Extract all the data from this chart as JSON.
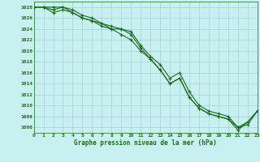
{
  "title": "Graphe pression niveau de la mer (hPa)",
  "bg_color": "#c8f0f0",
  "grid_color": "#a0d0d0",
  "line_color": "#1a6b1a",
  "marker_color": "#1a6b1a",
  "xlim": [
    0,
    23
  ],
  "ylim": [
    1005,
    1029
  ],
  "xtick_labels": [
    "0",
    "1",
    "2",
    "3",
    "4",
    "5",
    "6",
    "7",
    "8",
    "9",
    "10",
    "11",
    "12",
    "13",
    "14",
    "15",
    "16",
    "17",
    "18",
    "19",
    "20",
    "21",
    "22",
    "23"
  ],
  "ytick_values": [
    1006,
    1008,
    1010,
    1012,
    1014,
    1016,
    1018,
    1020,
    1022,
    1024,
    1026,
    1028
  ],
  "series": [
    {
      "x": [
        0,
        1,
        2,
        3,
        4,
        5,
        6,
        7,
        8,
        9,
        10,
        11,
        12,
        13,
        14,
        15,
        16,
        17,
        18,
        19,
        20,
        21,
        22,
        23
      ],
      "y": [
        1028,
        1028,
        1028,
        1028,
        1027.5,
        1026.5,
        1026,
        1025,
        1024.5,
        1024,
        1023.5,
        1021,
        1019,
        1017.5,
        1015,
        1016,
        1012.5,
        1010,
        1009,
        1008.5,
        1008,
        1006,
        1006.5,
        1009
      ]
    },
    {
      "x": [
        0,
        1,
        2,
        3,
        4,
        5,
        6,
        7,
        8,
        9,
        10,
        11,
        12,
        13,
        14,
        15,
        16,
        17,
        18,
        19,
        20,
        21,
        22,
        23
      ],
      "y": [
        1028,
        1028,
        1027,
        1027.5,
        1027,
        1026,
        1025.5,
        1024.5,
        1024,
        1023,
        1022,
        1020,
        1018.5,
        1016.5,
        1014,
        1015,
        1011.5,
        1009.5,
        1008.5,
        1008,
        1007.5,
        1005.5,
        1007,
        1009
      ]
    },
    {
      "x": [
        0,
        1,
        2,
        3,
        4,
        5,
        6,
        7,
        8,
        9,
        10,
        11,
        12,
        13,
        14,
        15,
        16,
        17,
        18,
        19,
        20,
        21,
        22,
        23
      ],
      "y": [
        1028,
        1028,
        1027.5,
        1028,
        1027,
        1026,
        1025.5,
        1025,
        1024,
        1024,
        1023,
        1020.5,
        1018.5,
        1016.5,
        1014,
        1015,
        1011.5,
        1009.5,
        1008.5,
        1008,
        1007.5,
        1006,
        1007,
        1009
      ]
    }
  ]
}
